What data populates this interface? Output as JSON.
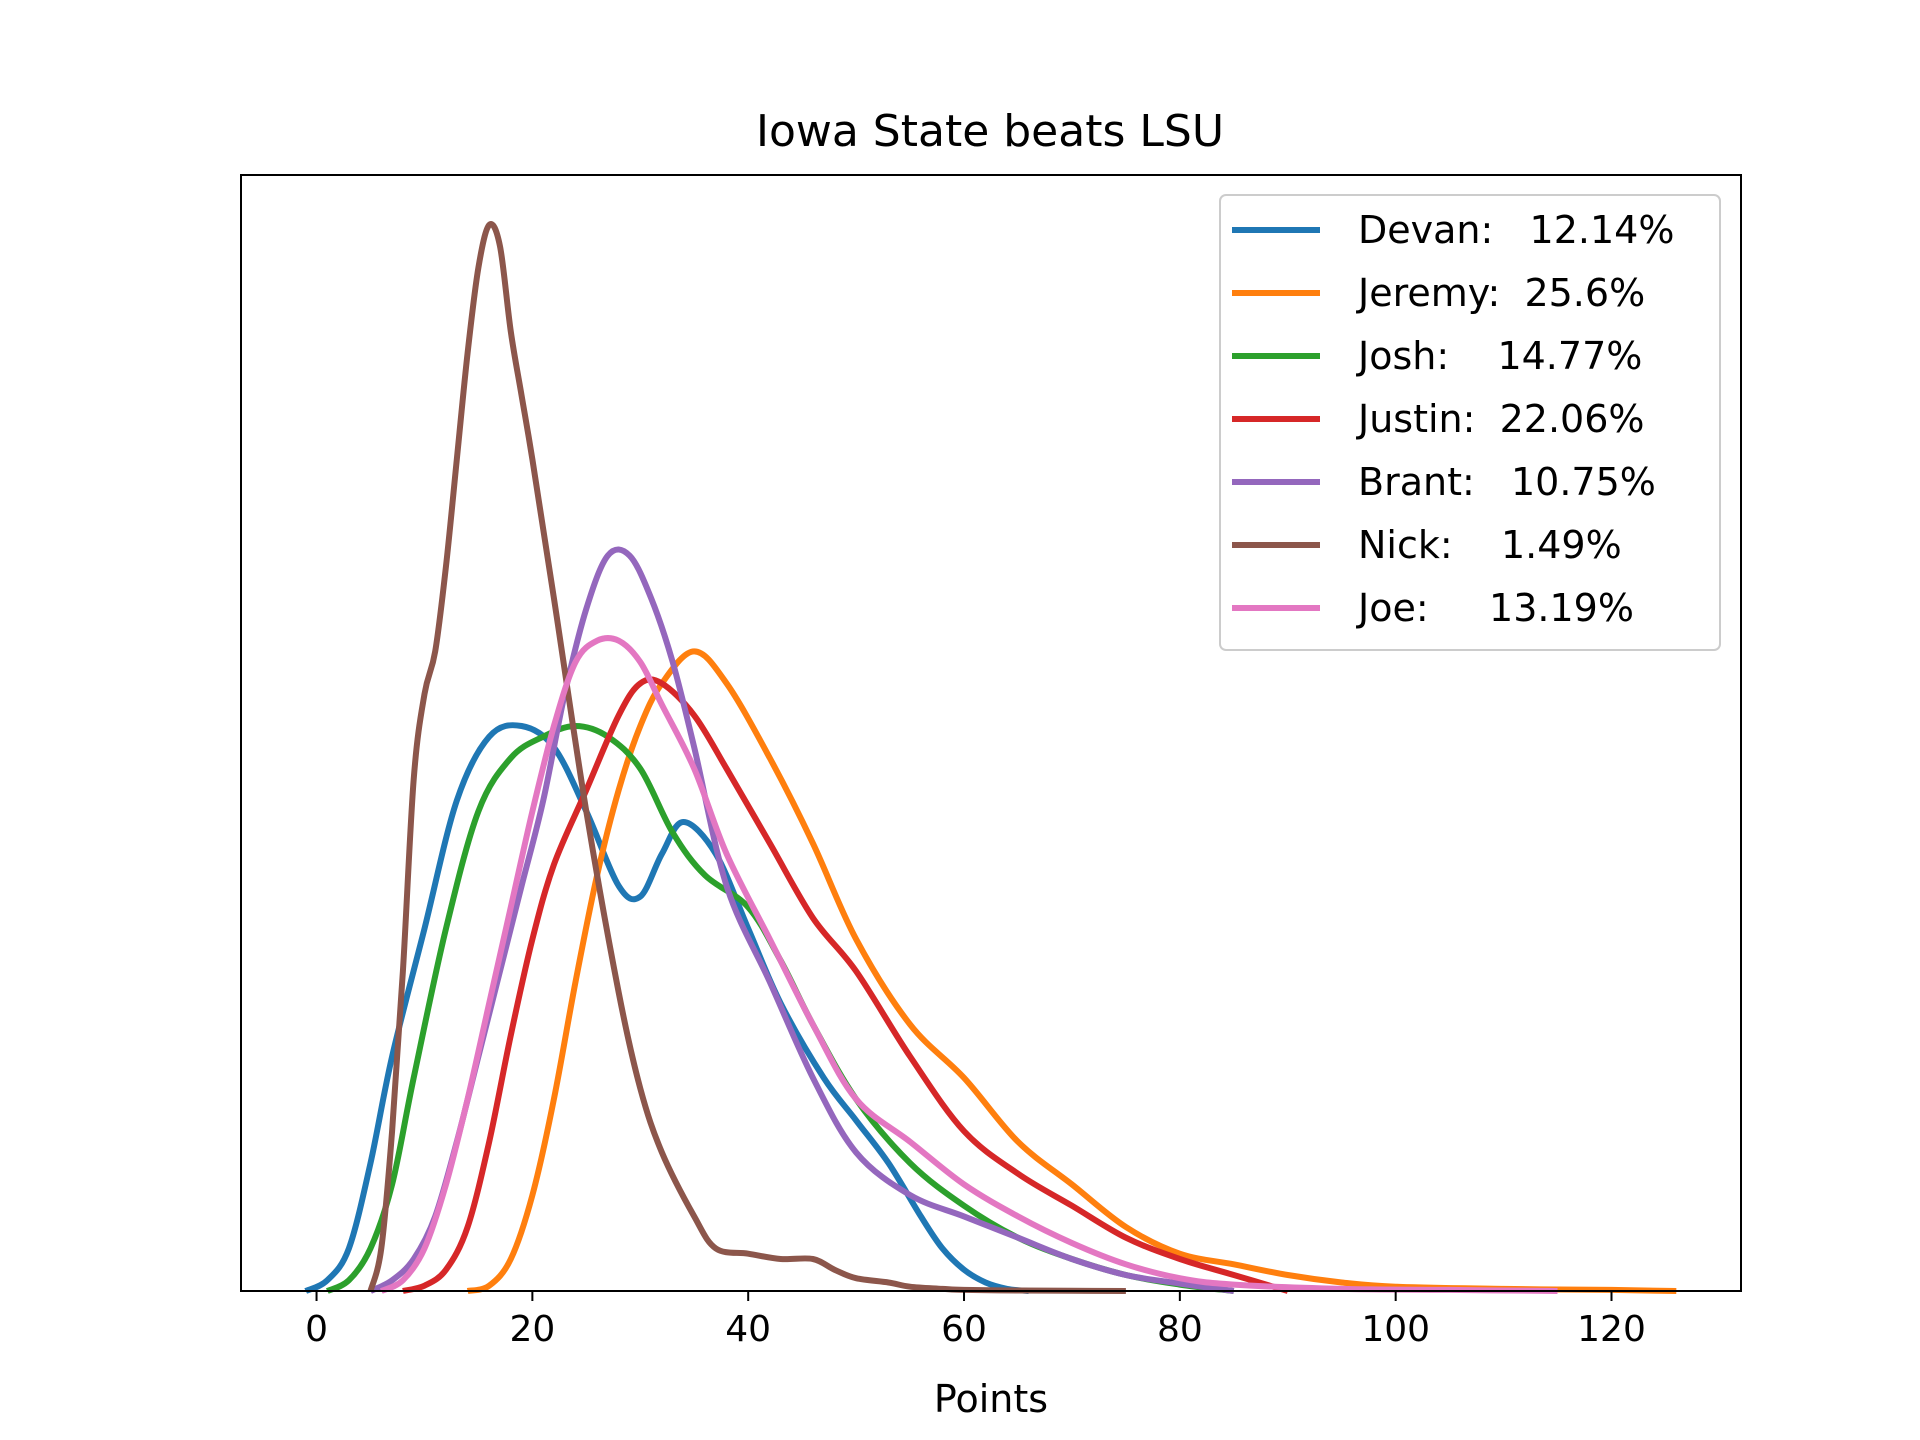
{
  "chart_data": {
    "type": "line",
    "title": "Iowa State beats LSU",
    "xlabel": "Points",
    "ylabel": "",
    "xlim": [
      -7,
      132
    ],
    "ylim": [
      0,
      1
    ],
    "xticks": [
      0,
      20,
      40,
      60,
      80,
      100,
      120
    ],
    "show_yticks": false,
    "grid": false,
    "legend_position": "upper right",
    "series": [
      {
        "name": "Devan:   12.14%",
        "color": "#1f77b4",
        "x": [
          -1,
          1,
          3,
          5,
          7,
          10,
          13,
          16,
          19,
          22,
          25,
          28,
          30,
          32,
          34,
          37,
          40,
          43,
          47,
          50,
          53,
          56,
          58,
          60,
          62,
          64,
          66
        ],
        "y": [
          0.0,
          0.01,
          0.04,
          0.12,
          0.22,
          0.34,
          0.46,
          0.52,
          0.53,
          0.51,
          0.45,
          0.38,
          0.37,
          0.41,
          0.44,
          0.41,
          0.34,
          0.27,
          0.2,
          0.16,
          0.12,
          0.07,
          0.04,
          0.02,
          0.008,
          0.002,
          0.0
        ]
      },
      {
        "name": "Jeremy:  25.6%",
        "color": "#ff7f0e",
        "x": [
          14,
          16,
          18,
          20,
          22,
          24,
          26,
          28,
          30,
          32,
          35,
          38,
          42,
          46,
          50,
          55,
          60,
          65,
          70,
          75,
          80,
          85,
          90,
          95,
          100,
          110,
          120,
          126
        ],
        "y": [
          0.0,
          0.005,
          0.03,
          0.09,
          0.18,
          0.29,
          0.39,
          0.47,
          0.53,
          0.57,
          0.6,
          0.57,
          0.5,
          0.42,
          0.33,
          0.25,
          0.2,
          0.14,
          0.1,
          0.06,
          0.035,
          0.025,
          0.015,
          0.008,
          0.004,
          0.002,
          0.001,
          0.0
        ]
      },
      {
        "name": "Josh:    14.77%",
        "color": "#2ca02c",
        "x": [
          1,
          3,
          5,
          7,
          9,
          12,
          15,
          18,
          21,
          24,
          27,
          30,
          33,
          36,
          40,
          43,
          46,
          50,
          55,
          60,
          65,
          70,
          75,
          80,
          85
        ],
        "y": [
          0.0,
          0.01,
          0.04,
          0.1,
          0.2,
          0.34,
          0.45,
          0.5,
          0.52,
          0.53,
          0.52,
          0.49,
          0.43,
          0.39,
          0.36,
          0.31,
          0.25,
          0.18,
          0.12,
          0.08,
          0.05,
          0.03,
          0.015,
          0.006,
          0.0
        ]
      },
      {
        "name": "Justin:  22.06%",
        "color": "#d62728",
        "x": [
          8,
          10,
          12,
          14,
          16,
          18,
          20,
          22,
          25,
          28,
          30,
          32,
          35,
          38,
          42,
          46,
          50,
          55,
          60,
          65,
          70,
          75,
          80,
          85,
          90
        ],
        "y": [
          0.0,
          0.005,
          0.02,
          0.06,
          0.14,
          0.24,
          0.33,
          0.4,
          0.47,
          0.54,
          0.57,
          0.57,
          0.54,
          0.49,
          0.42,
          0.35,
          0.3,
          0.22,
          0.15,
          0.11,
          0.08,
          0.05,
          0.03,
          0.015,
          0.0
        ]
      },
      {
        "name": "Brant:   10.75%",
        "color": "#9467bd",
        "x": [
          5,
          7,
          9,
          11,
          13,
          15,
          17,
          19,
          21,
          23,
          25,
          27,
          29,
          31,
          33,
          35,
          38,
          42,
          46,
          50,
          55,
          60,
          65,
          70,
          75,
          80,
          85
        ],
        "y": [
          0.0,
          0.01,
          0.03,
          0.07,
          0.14,
          0.22,
          0.3,
          0.38,
          0.46,
          0.56,
          0.64,
          0.69,
          0.69,
          0.65,
          0.59,
          0.51,
          0.38,
          0.29,
          0.2,
          0.13,
          0.09,
          0.07,
          0.05,
          0.03,
          0.015,
          0.007,
          0.0
        ]
      },
      {
        "name": "Nick:    1.49%",
        "color": "#8c564b",
        "x": [
          5,
          6,
          7,
          8,
          9,
          10,
          11,
          12,
          13,
          14,
          15,
          16,
          17,
          18,
          19,
          20,
          22,
          25,
          28,
          30,
          32,
          35,
          37,
          40,
          43,
          46,
          48,
          50,
          53,
          55,
          58,
          60,
          65,
          70,
          75
        ],
        "y": [
          0.0,
          0.04,
          0.15,
          0.3,
          0.48,
          0.56,
          0.6,
          0.68,
          0.78,
          0.88,
          0.96,
          1.0,
          0.98,
          0.9,
          0.84,
          0.78,
          0.65,
          0.45,
          0.28,
          0.19,
          0.13,
          0.07,
          0.04,
          0.035,
          0.03,
          0.03,
          0.02,
          0.012,
          0.008,
          0.004,
          0.002,
          0.001,
          0.0005,
          0.0002,
          0.0
        ]
      },
      {
        "name": "Joe:     13.19%",
        "color": "#e377c2",
        "x": [
          6,
          8,
          10,
          12,
          14,
          16,
          18,
          20,
          22,
          24,
          26,
          28,
          30,
          32,
          35,
          38,
          42,
          46,
          50,
          55,
          60,
          65,
          70,
          75,
          80,
          85,
          95,
          105,
          115
        ],
        "y": [
          0.0,
          0.01,
          0.04,
          0.1,
          0.18,
          0.27,
          0.36,
          0.45,
          0.53,
          0.59,
          0.61,
          0.61,
          0.59,
          0.55,
          0.49,
          0.41,
          0.33,
          0.25,
          0.18,
          0.14,
          0.1,
          0.07,
          0.045,
          0.025,
          0.012,
          0.006,
          0.002,
          0.001,
          0.0
        ]
      }
    ]
  }
}
